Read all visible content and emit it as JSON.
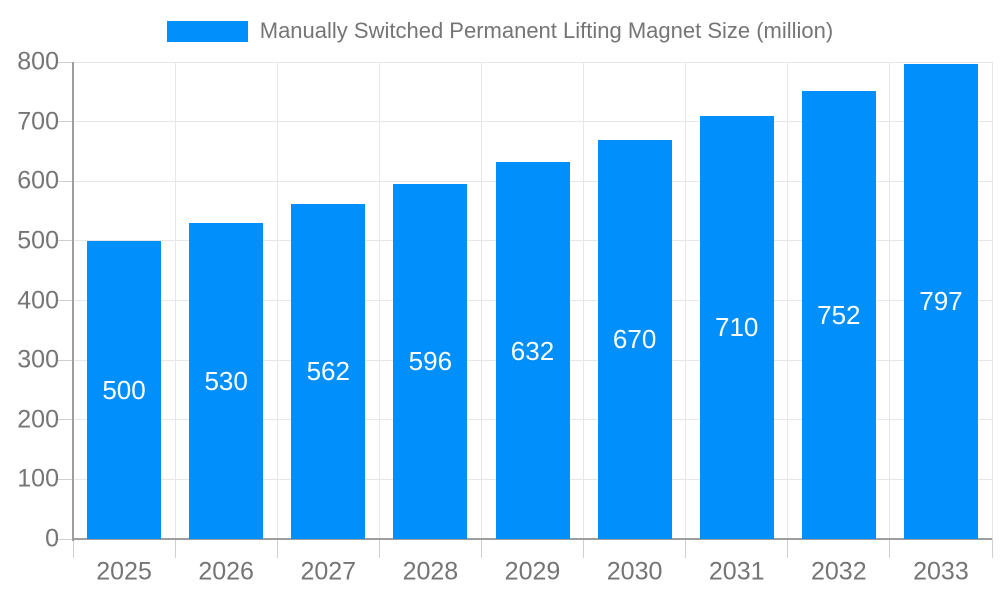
{
  "legend": {
    "label": "Manually Switched Permanent Lifting Magnet Size (million)"
  },
  "chart_data": {
    "type": "bar",
    "title": "Manually Switched Permanent Lifting Magnet Size (million)",
    "series": [
      {
        "name": "Manually Switched Permanent Lifting Magnet Size (million)",
        "values": [
          500,
          530,
          562,
          596,
          632,
          670,
          710,
          752,
          797
        ]
      }
    ],
    "categories": [
      "2025",
      "2026",
      "2027",
      "2028",
      "2029",
      "2030",
      "2031",
      "2032",
      "2033"
    ],
    "xlabel": "",
    "ylabel": "",
    "ylim": [
      0,
      800
    ],
    "ytick_step": 100,
    "ytick_labels": [
      "0",
      "100",
      "200",
      "300",
      "400",
      "500",
      "600",
      "700",
      "800"
    ],
    "grid": true,
    "legend_position": "top",
    "colors": {
      "bar": "#008FFB",
      "bar_value_label": "#ffffff",
      "axis_text": "#757575",
      "gridline": "#e7e7e7",
      "tick": "#cfcfcf",
      "axis_line": "#9e9e9e",
      "background": "#ffffff"
    }
  }
}
